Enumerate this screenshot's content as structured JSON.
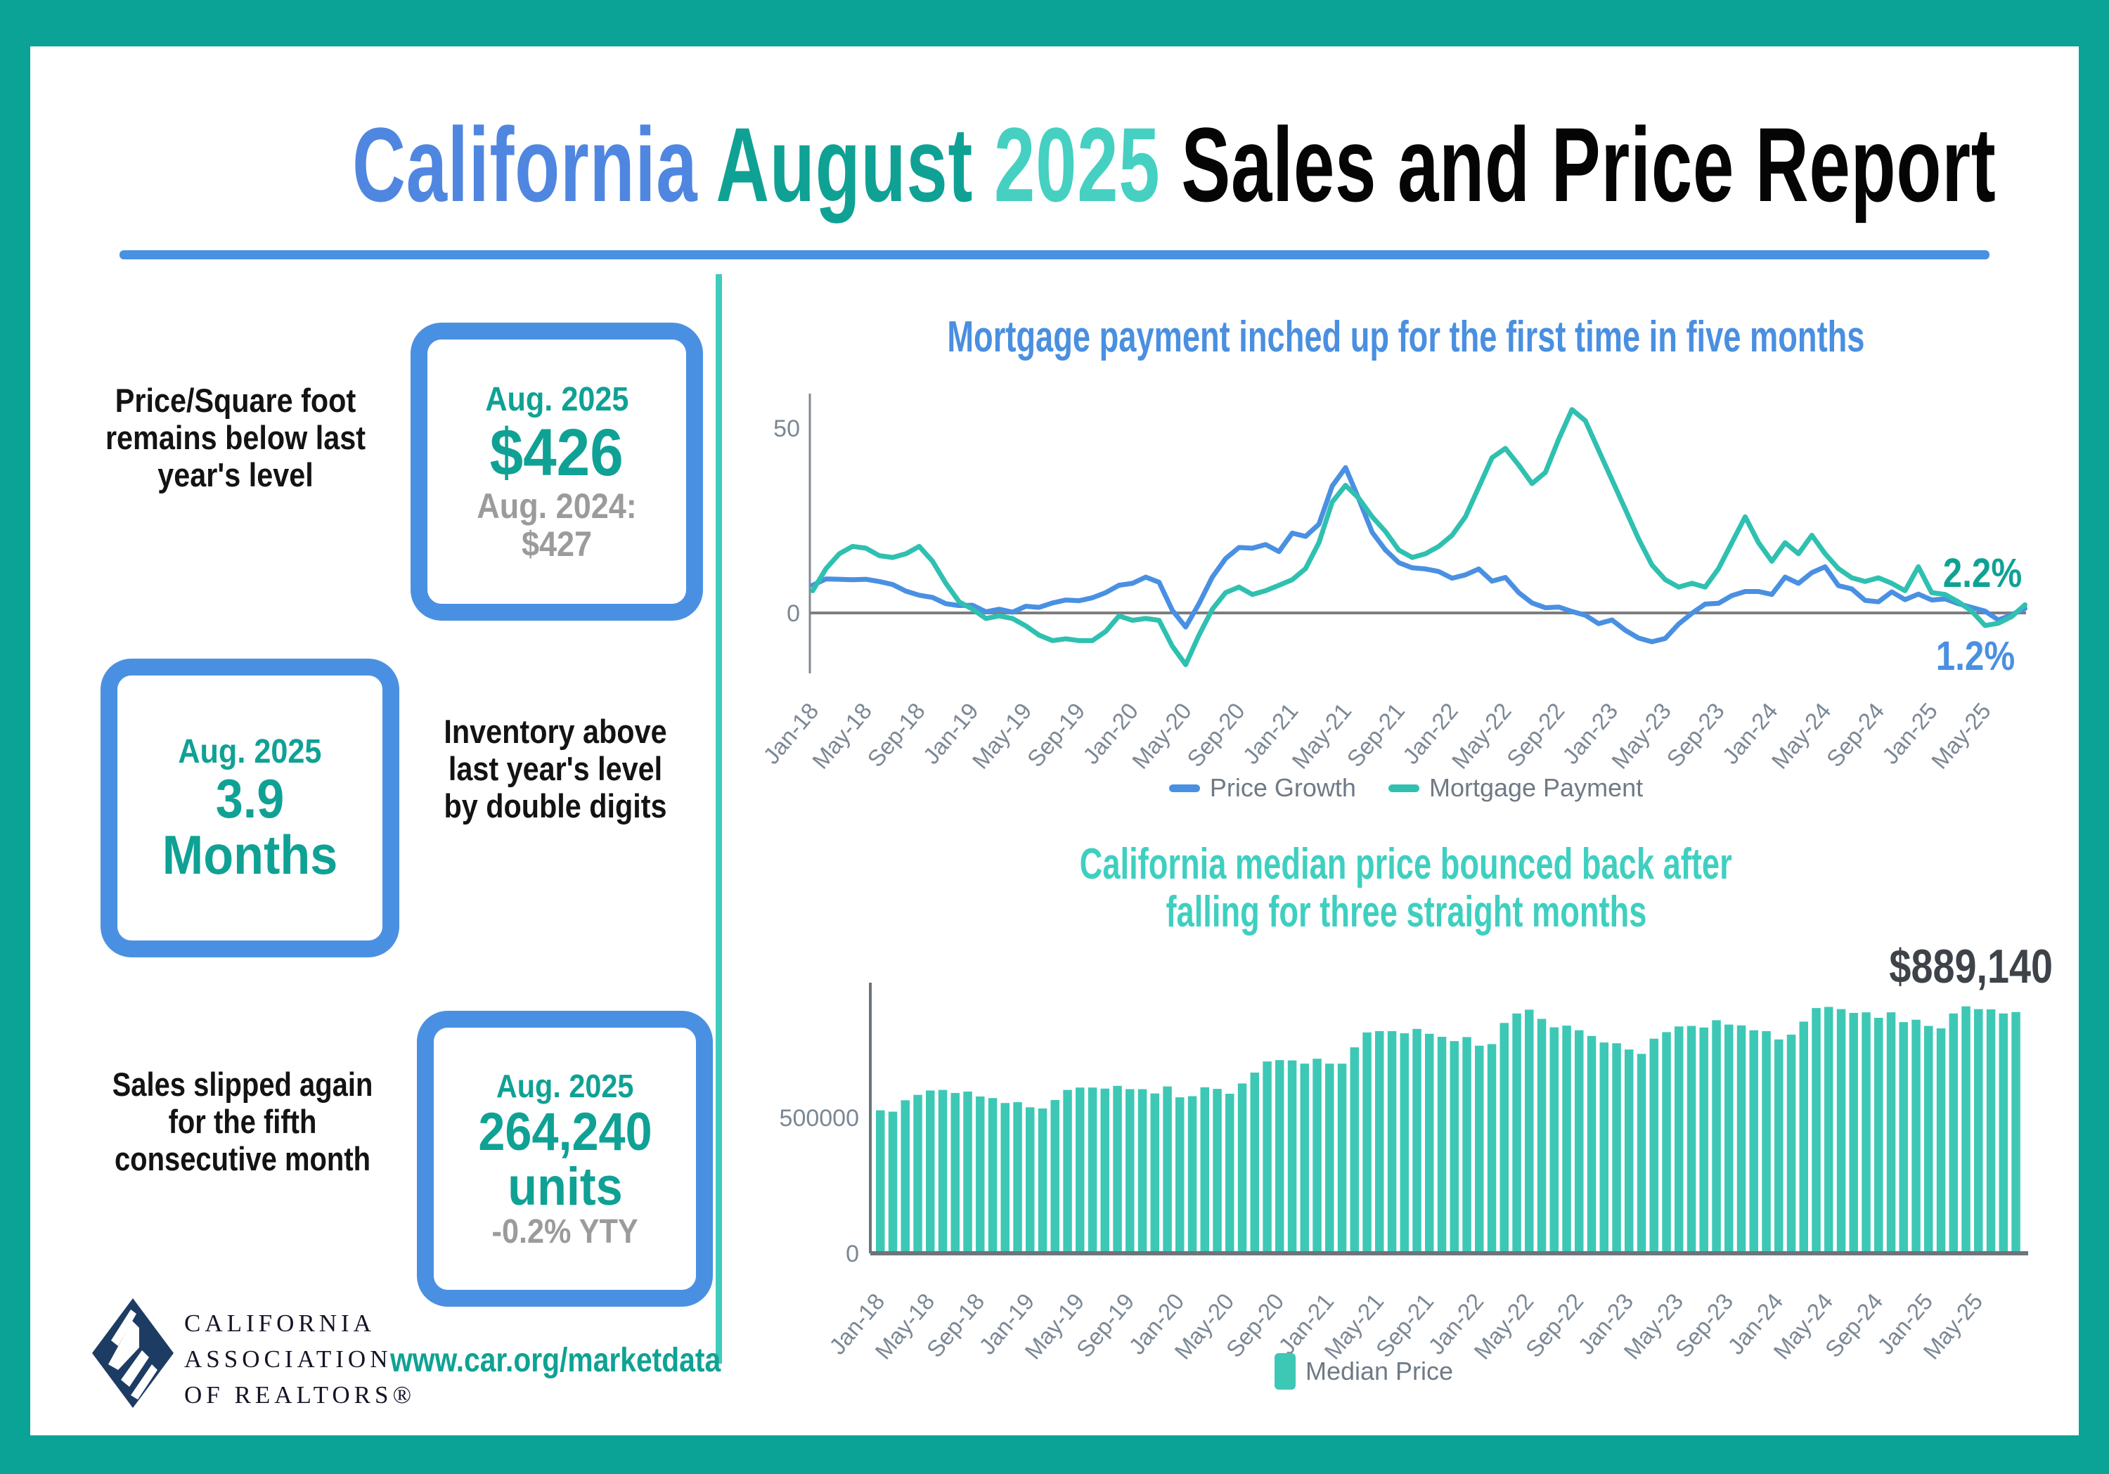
{
  "title": {
    "california": "California",
    "august": "August",
    "year": "2025",
    "rest": "Sales and Price Report"
  },
  "colors": {
    "frame_teal": "#0aa396",
    "accent_blue": "#4a90e2",
    "title_blue": "#4f86e0",
    "dark_teal": "#10a195",
    "light_teal": "#3fccbd",
    "bar_teal": "#3dc8b6",
    "line_blue": "#4a90e2",
    "line_teal": "#2fc0b0",
    "gray_text": "#9b9b9b",
    "axis_gray": "#7b8794",
    "logo_navy": "#1d3c63"
  },
  "stats": [
    {
      "headline": "Price/Square foot remains below last year's level",
      "period": "Aug. 2025",
      "value": "$426",
      "comparison": "Aug. 2024: $427"
    },
    {
      "period": "Aug. 2025",
      "value": "3.9 Months",
      "headline": "Inventory above last year's level by double digits"
    },
    {
      "headline": "Sales slipped again for the fifth consecutive month",
      "period": "Aug. 2025",
      "value": "264,240 units",
      "comparison": "-0.2% YTY"
    }
  ],
  "footer": {
    "org_lines": [
      "CALIFORNIA",
      "ASSOCIATION",
      "OF REALTORS®"
    ],
    "website": "www.car.org/marketdata"
  },
  "chart_data": [
    {
      "type": "line",
      "title": "Mortgage payment inched up for the first time in five months",
      "months_range": "Jan-18 to Aug-25 (monthly)",
      "x_tick_labels": [
        "Jan-18",
        "May-18",
        "Sep-18",
        "Jan-19",
        "May-19",
        "Sep-19",
        "Jan-20",
        "May-20",
        "Sep-20",
        "Jan-21",
        "May-21",
        "Sep-21",
        "Jan-22",
        "May-22",
        "Sep-22",
        "Jan-23",
        "May-23",
        "Sep-23",
        "Jan-24",
        "May-24",
        "Sep-24",
        "Jan-25",
        "May-25"
      ],
      "yticks": [
        50,
        0
      ],
      "ylim": [
        -16,
        59
      ],
      "legend_position": "bottom",
      "series": [
        {
          "name": "Price Growth",
          "color": "#4a90e2",
          "values": [
            7.5,
            9.2,
            9.1,
            9.0,
            9.1,
            8.5,
            7.7,
            5.9,
            4.8,
            4.2,
            2.5,
            2.0,
            2.1,
            0.3,
            1.0,
            0.2,
            1.8,
            1.5,
            2.7,
            3.5,
            3.3,
            4.1,
            5.5,
            7.5,
            8.0,
            9.7,
            8.3,
            0.7,
            -3.8,
            2.5,
            9.7,
            14.7,
            17.7,
            17.5,
            18.5,
            16.6,
            21.6,
            20.7,
            24.0,
            34.3,
            39.3,
            30.8,
            21.8,
            17.0,
            13.6,
            12.2,
            11.9,
            11.2,
            9.4,
            10.3,
            11.9,
            8.6,
            9.6,
            5.5,
            2.7,
            1.4,
            1.6,
            0.4,
            -0.6,
            -2.9,
            -1.9,
            -4.7,
            -6.8,
            -7.8,
            -6.9,
            -3.0,
            -0.1,
            2.4,
            2.6,
            4.7,
            5.8,
            5.8,
            5.0,
            9.7,
            8.0,
            10.9,
            12.5,
            7.4,
            6.5,
            3.4,
            3.0,
            5.7,
            3.6,
            5.1,
            3.5,
            3.8,
            2.5,
            1.5,
            0.5,
            -1.9,
            -0.5,
            1.2
          ]
        },
        {
          "name": "Mortgage Payment",
          "color": "#2fc0b0",
          "values": [
            6,
            12,
            16,
            18,
            17.5,
            15.5,
            15,
            16,
            18,
            14,
            8,
            3,
            1,
            -1.5,
            -0.8,
            -1.5,
            -3.5,
            -6,
            -7.5,
            -7,
            -7.5,
            -7.5,
            -5,
            -0.8,
            -2,
            -1.5,
            -2,
            -9,
            -14,
            -6,
            1,
            5.5,
            7,
            5,
            6,
            7.5,
            9,
            12,
            19,
            30,
            34.5,
            31,
            26,
            22,
            17,
            15,
            16,
            18,
            21,
            26,
            34,
            42,
            44.5,
            40,
            35,
            38,
            47,
            55,
            52,
            44,
            36,
            28,
            20,
            13,
            9,
            7,
            8,
            7,
            12,
            19,
            26,
            19,
            14,
            19,
            16,
            21,
            16,
            12,
            9.5,
            8.5,
            9.5,
            8,
            6,
            12.5,
            5.5,
            5.0,
            3.0,
            0.5,
            -3.4,
            -2.8,
            -1.0,
            2.2
          ]
        }
      ],
      "end_annotations": [
        {
          "text": "2.2%",
          "series": "Mortgage Payment",
          "color": "#0fa294"
        },
        {
          "text": "1.2%",
          "series": "Price Growth",
          "color": "#4a90e2"
        }
      ]
    },
    {
      "type": "bar",
      "title": [
        "California median price bounced back after",
        "falling for three straight months"
      ],
      "annotation": "$889,140",
      "legend": "Median Price",
      "bar_color": "#3dc8b6",
      "yticks": [
        500000,
        0
      ],
      "ylim": [
        0,
        960000
      ],
      "x_tick_labels": [
        "Jan-18",
        "May-18",
        "Sep-18",
        "Jan-19",
        "May-19",
        "Sep-19",
        "Jan-20",
        "May-20",
        "Sep-20",
        "Jan-21",
        "May-21",
        "Sep-21",
        "Jan-22",
        "May-22",
        "Sep-22",
        "Jan-23",
        "May-23",
        "Sep-23",
        "Jan-24",
        "May-24",
        "Sep-24",
        "Jan-25",
        "May-25"
      ],
      "values": [
        527000,
        522000,
        564000,
        584000,
        600000,
        602000,
        591000,
        596000,
        578000,
        572000,
        554000,
        557000,
        538000,
        534000,
        565000,
        602000,
        611000,
        611000,
        607000,
        617000,
        605000,
        605000,
        589000,
        615000,
        575000,
        579000,
        612000,
        606000,
        588000,
        626000,
        666000,
        707000,
        712000,
        711000,
        699000,
        717000,
        699000,
        699000,
        759000,
        814000,
        819000,
        819000,
        811000,
        827000,
        809000,
        798000,
        782000,
        797000,
        765000,
        771000,
        849000,
        884000,
        898000,
        864000,
        833000,
        839000,
        822000,
        801000,
        777000,
        774000,
        751000,
        735000,
        791000,
        815000,
        836000,
        838000,
        832000,
        859000,
        843000,
        840000,
        822000,
        819000,
        788000,
        806000,
        854000,
        904000,
        908000,
        900000,
        886000,
        888000,
        868000,
        888000,
        852000,
        861000,
        838000,
        829000,
        884000,
        910000,
        900000,
        899000,
        884000,
        889140
      ]
    }
  ]
}
